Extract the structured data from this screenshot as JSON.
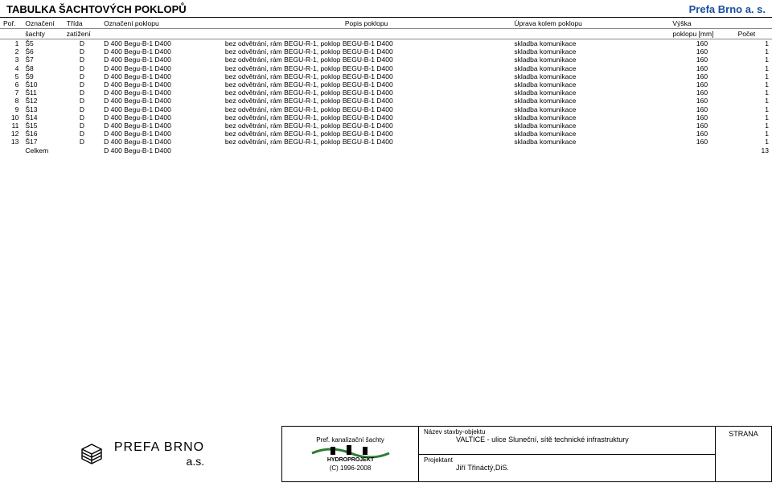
{
  "colors": {
    "title_blue": "#1a4fa0",
    "logo_green": "#2e7d32",
    "border": "#000000",
    "header_border": "#888888"
  },
  "title": {
    "left": "TABULKA ŠACHTOVÝCH POKLOPŮ",
    "right": "Prefa Brno a. s."
  },
  "headers": {
    "row1": {
      "por": "Poř.",
      "oznaceni": "Označení",
      "trida": "Třída",
      "oznac_poklopu": "Označení poklopu",
      "popis": "Popis poklopu",
      "uprava": "Úprava kolem poklopu",
      "vyska": "Výška",
      "pocet": ""
    },
    "row2": {
      "por": "",
      "sachty": "šachty",
      "zatizeni": "zatížení",
      "oznac_poklopu": "",
      "popis": "",
      "uprava": "",
      "vyska_mm": "poklopu [mm]",
      "pocet": "Počet"
    }
  },
  "rows": [
    {
      "por": "1",
      "sachta": "Š5",
      "trida": "D",
      "oznac": "D 400 Begu-B-1 D400",
      "popis": "bez odvětrání, rám BEGU-R-1, poklop BEGU-B-1 D400",
      "uprava": "skladba komunikace",
      "vyska": "160",
      "pocet": "1"
    },
    {
      "por": "2",
      "sachta": "Š6",
      "trida": "D",
      "oznac": "D 400 Begu-B-1 D400",
      "popis": "bez odvětrání, rám BEGU-R-1, poklop BEGU-B-1 D400",
      "uprava": "skladba komunikace",
      "vyska": "160",
      "pocet": "1"
    },
    {
      "por": "3",
      "sachta": "Š7",
      "trida": "D",
      "oznac": "D 400 Begu-B-1 D400",
      "popis": "bez odvětrání, rám BEGU-R-1, poklop BEGU-B-1 D400",
      "uprava": "skladba komunikace",
      "vyska": "160",
      "pocet": "1"
    },
    {
      "por": "4",
      "sachta": "Š8",
      "trida": "D",
      "oznac": "D 400 Begu-B-1 D400",
      "popis": "bez odvětrání, rám BEGU-R-1, poklop BEGU-B-1 D400",
      "uprava": "skladba komunikace",
      "vyska": "160",
      "pocet": "1"
    },
    {
      "por": "5",
      "sachta": "Š9",
      "trida": "D",
      "oznac": "D 400 Begu-B-1 D400",
      "popis": "bez odvětrání, rám BEGU-R-1, poklop BEGU-B-1 D400",
      "uprava": "skladba komunikace",
      "vyska": "160",
      "pocet": "1"
    },
    {
      "por": "6",
      "sachta": "Š10",
      "trida": "D",
      "oznac": "D 400 Begu-B-1 D400",
      "popis": "bez odvětrání, rám BEGU-R-1, poklop BEGU-B-1 D400",
      "uprava": "skladba komunikace",
      "vyska": "160",
      "pocet": "1"
    },
    {
      "por": "7",
      "sachta": "Š11",
      "trida": "D",
      "oznac": "D 400 Begu-B-1 D400",
      "popis": "bez odvětrání, rám BEGU-R-1, poklop BEGU-B-1 D400",
      "uprava": "skladba komunikace",
      "vyska": "160",
      "pocet": "1"
    },
    {
      "por": "8",
      "sachta": "Š12",
      "trida": "D",
      "oznac": "D 400 Begu-B-1 D400",
      "popis": "bez odvětrání, rám BEGU-R-1, poklop BEGU-B-1 D400",
      "uprava": "skladba komunikace",
      "vyska": "160",
      "pocet": "1"
    },
    {
      "por": "9",
      "sachta": "Š13",
      "trida": "D",
      "oznac": "D 400 Begu-B-1 D400",
      "popis": "bez odvětrání, rám BEGU-R-1, poklop BEGU-B-1 D400",
      "uprava": "skladba komunikace",
      "vyska": "160",
      "pocet": "1"
    },
    {
      "por": "10",
      "sachta": "Š14",
      "trida": "D",
      "oznac": "D 400 Begu-B-1 D400",
      "popis": "bez odvětrání, rám BEGU-R-1, poklop BEGU-B-1 D400",
      "uprava": "skladba komunikace",
      "vyska": "160",
      "pocet": "1"
    },
    {
      "por": "11",
      "sachta": "Š15",
      "trida": "D",
      "oznac": "D 400 Begu-B-1 D400",
      "popis": "bez odvětrání, rám BEGU-R-1, poklop BEGU-B-1 D400",
      "uprava": "skladba komunikace",
      "vyska": "160",
      "pocet": "1"
    },
    {
      "por": "12",
      "sachta": "Š16",
      "trida": "D",
      "oznac": "D 400 Begu-B-1 D400",
      "popis": "bez odvětrání, rám BEGU-R-1, poklop BEGU-B-1 D400",
      "uprava": "skladba komunikace",
      "vyska": "160",
      "pocet": "1"
    },
    {
      "por": "13",
      "sachta": "Š17",
      "trida": "D",
      "oznac": "D 400 Begu-B-1 D400",
      "popis": "bez odvětrání, rám BEGU-R-1, poklop BEGU-B-1 D400",
      "uprava": "skladba komunikace",
      "vyska": "160",
      "pocet": "1"
    }
  ],
  "total": {
    "label": "Celkem",
    "oznac": "D 400 Begu-B-1 D400",
    "pocet": "13"
  },
  "footer": {
    "prefa": {
      "line1": "PREFA BRNO",
      "line2": "a.s."
    },
    "hydroprojekt": {
      "top": "Pref. kanalizační šachty",
      "copy": "(C) 1996-2008"
    },
    "nazev_label": "Název stavby-objektu",
    "nazev_value": "VALTICE - ulice Sluneční, sítě technické infrastruktury",
    "projektant_label": "Projektant",
    "projektant_value": "Jiří Třináctý,DiS.",
    "strana": "STRANA"
  }
}
